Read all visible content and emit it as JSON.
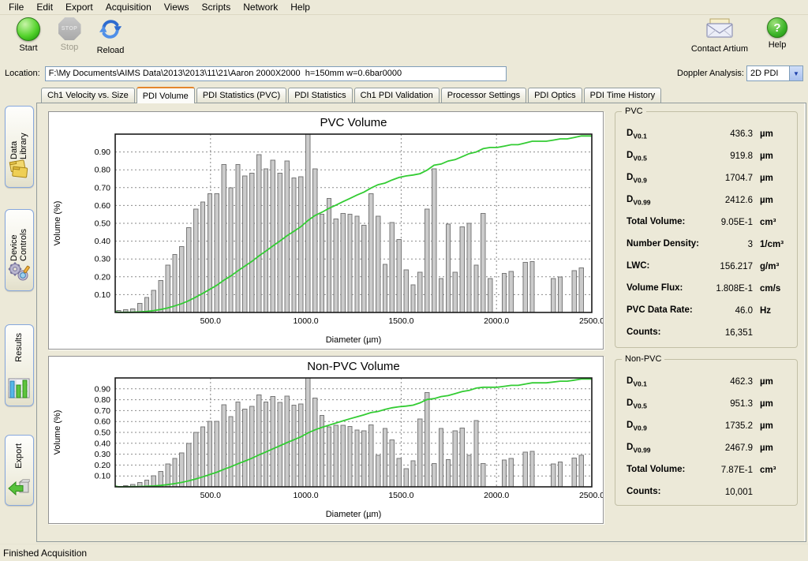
{
  "menu": {
    "items": [
      "File",
      "Edit",
      "Export",
      "Acquisition",
      "Views",
      "Scripts",
      "Network",
      "Help"
    ]
  },
  "toolbar": {
    "start": "Start",
    "stop": "Stop",
    "stop_badge": "STOP",
    "reload": "Reload",
    "contact": "Contact Artium",
    "help": "Help",
    "help_glyph": "?"
  },
  "location": {
    "label": "Location:",
    "value": "F:\\My Documents\\AIMS Data\\2013\\2013\\11\\21\\Aaron 2000X2000  h=150mm w=0.6bar0000"
  },
  "doppler": {
    "label": "Doppler Analysis:",
    "value": "2D PDI"
  },
  "tabs": [
    {
      "label": "Ch1 Velocity vs. Size",
      "active": false
    },
    {
      "label": "PDI Volume",
      "active": true
    },
    {
      "label": "PDI Statistics (PVC)",
      "active": false
    },
    {
      "label": "PDI Statistics",
      "active": false
    },
    {
      "label": "Ch1 PDI Validation",
      "active": false
    },
    {
      "label": "Processor Settings",
      "active": false
    },
    {
      "label": "PDI Optics",
      "active": false
    },
    {
      "label": "PDI Time History",
      "active": false
    }
  ],
  "sidebar": {
    "items": [
      {
        "label": "Data Library"
      },
      {
        "label": "Device Controls"
      },
      {
        "label": "Results"
      },
      {
        "label": "Export"
      }
    ]
  },
  "stats_pvc": {
    "title": "PVC",
    "rows": [
      {
        "base": "D",
        "sub": "V0.1",
        "label": "",
        "value": "436.3",
        "unit": "µm"
      },
      {
        "base": "D",
        "sub": "V0.5",
        "label": "",
        "value": "919.8",
        "unit": "µm"
      },
      {
        "base": "D",
        "sub": "V0.9",
        "label": "",
        "value": "1704.7",
        "unit": "µm"
      },
      {
        "base": "D",
        "sub": "V0.99",
        "label": "",
        "value": "2412.6",
        "unit": "µm"
      },
      {
        "base": "",
        "sub": "",
        "label": "Total Volume:",
        "value": "9.05E-1",
        "unit": "cm³"
      },
      {
        "base": "",
        "sub": "",
        "label": "Number Density:",
        "value": "3",
        "unit": "1/cm³"
      },
      {
        "base": "",
        "sub": "",
        "label": "LWC:",
        "value": "156.217",
        "unit": "g/m³"
      },
      {
        "base": "",
        "sub": "",
        "label": "Volume Flux:",
        "value": "1.808E-1",
        "unit": "cm/s"
      },
      {
        "base": "",
        "sub": "",
        "label": "PVC Data Rate:",
        "value": "46.0",
        "unit": "Hz"
      },
      {
        "base": "",
        "sub": "",
        "label": "Counts:",
        "value": "16,351",
        "unit": ""
      }
    ]
  },
  "stats_nonpvc": {
    "title": "Non-PVC",
    "rows": [
      {
        "base": "D",
        "sub": "V0.1",
        "label": "",
        "value": "462.3",
        "unit": "µm"
      },
      {
        "base": "D",
        "sub": "V0.5",
        "label": "",
        "value": "951.3",
        "unit": "µm"
      },
      {
        "base": "D",
        "sub": "V0.9",
        "label": "",
        "value": "1735.2",
        "unit": "µm"
      },
      {
        "base": "D",
        "sub": "V0.99",
        "label": "",
        "value": "2467.9",
        "unit": "µm"
      },
      {
        "base": "",
        "sub": "",
        "label": "Total Volume:",
        "value": "7.87E-1",
        "unit": "cm³"
      },
      {
        "base": "",
        "sub": "",
        "label": "Counts:",
        "value": "10,001",
        "unit": ""
      }
    ]
  },
  "status": {
    "text": "Finished Acquisition"
  },
  "chart_data": [
    {
      "type": "bar",
      "title": "PVC Volume",
      "xlabel": "Diameter (µm)",
      "ylabel": "Volume (%)",
      "xlim": [
        0,
        2500
      ],
      "ylim": [
        0,
        1.0
      ],
      "xticks": [
        500,
        1000,
        1500,
        2000,
        2500
      ],
      "yticks": [
        0.1,
        0.2,
        0.3,
        0.4,
        0.5,
        0.6,
        0.7,
        0.8,
        0.9
      ],
      "grid": "dashed",
      "legend": "none",
      "overlay": "cumulative-volume-line",
      "bar_color": "#cbcbcb",
      "bar_border": "#787878",
      "line_color": "#33cc33",
      "values": [
        0.01,
        0.015,
        0.02,
        0.05,
        0.085,
        0.125,
        0.18,
        0.265,
        0.325,
        0.37,
        0.475,
        0.58,
        0.62,
        0.665,
        0.665,
        0.83,
        0.7,
        0.83,
        0.765,
        0.78,
        0.885,
        0.805,
        0.855,
        0.78,
        0.85,
        0.755,
        0.76,
        1.0,
        0.805,
        0.55,
        0.64,
        0.525,
        0.555,
        0.55,
        0.54,
        0.49,
        0.665,
        0.54,
        0.27,
        0.505,
        0.41,
        0.24,
        0.155,
        0.225,
        0.58,
        0.805,
        0.19,
        0.495,
        0.225,
        0.48,
        0.5,
        0.265,
        0.555,
        0.19,
        0,
        0.22,
        0.23,
        0,
        0.28,
        0.285,
        0,
        0,
        0.19,
        0.2,
        0,
        0.235,
        0.25,
        0
      ]
    },
    {
      "type": "bar",
      "title": "Non-PVC Volume",
      "xlabel": "Diameter (µm)",
      "ylabel": "Volume (%)",
      "xlim": [
        0,
        2500
      ],
      "ylim": [
        0,
        1.0
      ],
      "xticks": [
        500,
        1000,
        1500,
        2000,
        2500
      ],
      "yticks": [
        0.1,
        0.2,
        0.3,
        0.4,
        0.5,
        0.6,
        0.7,
        0.8,
        0.9
      ],
      "grid": "dashed",
      "legend": "none",
      "overlay": "cumulative-volume-line",
      "bar_color": "#cbcbcb",
      "bar_border": "#787878",
      "line_color": "#33cc33",
      "values": [
        0.005,
        0.01,
        0.02,
        0.04,
        0.06,
        0.1,
        0.14,
        0.21,
        0.26,
        0.31,
        0.4,
        0.5,
        0.55,
        0.6,
        0.6,
        0.755,
        0.645,
        0.78,
        0.715,
        0.74,
        0.845,
        0.78,
        0.83,
        0.775,
        0.835,
        0.75,
        0.76,
        1.0,
        0.815,
        0.655,
        0.55,
        0.565,
        0.565,
        0.555,
        0.52,
        0.515,
        0.57,
        0.29,
        0.535,
        0.43,
        0.26,
        0.165,
        0.24,
        0.625,
        0.865,
        0.215,
        0.535,
        0.25,
        0.515,
        0.54,
        0.29,
        0.61,
        0.215,
        0,
        0,
        0.245,
        0.26,
        0,
        0.32,
        0.325,
        0,
        0,
        0.21,
        0.23,
        0,
        0.265,
        0.29,
        0
      ]
    }
  ]
}
